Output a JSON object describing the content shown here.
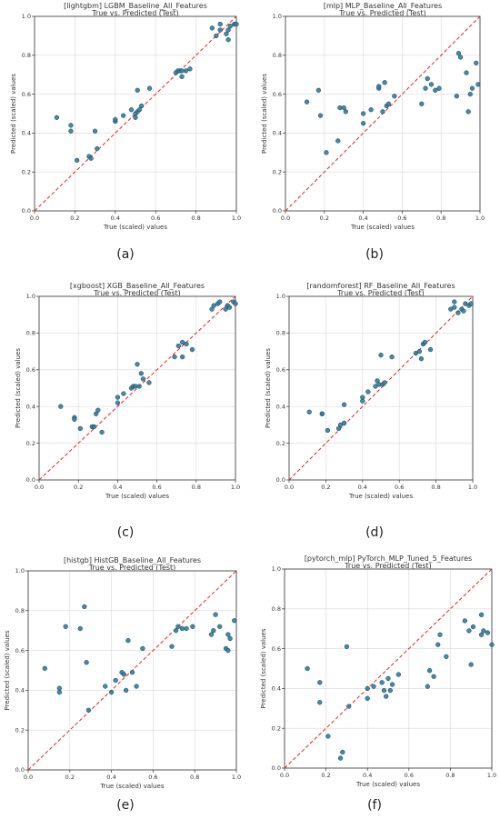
{
  "colors": {
    "point_fill": "#2f7ea0",
    "point_stroke": "#1b3a4a",
    "diagonal": "#e0261f",
    "grid": "#d8d8d8",
    "axis": "#333333"
  },
  "chart_data": [
    {
      "type": "scatter",
      "caption": "(a)",
      "title": "[lightgbm] LGBM_Baseline_All_Features",
      "subtitle": "True vs. Predicted (Test)",
      "xlabel": "True (scaled) values",
      "ylabel": "Predicted (scaled) values",
      "xlim": [
        0,
        1
      ],
      "ylim": [
        0,
        1
      ],
      "grid": true,
      "reference_line": "y = x",
      "xticks": [
        "0.0",
        "0.2",
        "0.4",
        "0.6",
        "0.8",
        "1.0"
      ],
      "yticks": [
        "0.0",
        "0.2",
        "0.4",
        "0.6",
        "0.8",
        "1.0"
      ],
      "x": [
        0.11,
        0.18,
        0.18,
        0.21,
        0.27,
        0.28,
        0.3,
        0.31,
        0.4,
        0.4,
        0.44,
        0.48,
        0.5,
        0.5,
        0.51,
        0.51,
        0.52,
        0.53,
        0.57,
        0.7,
        0.71,
        0.72,
        0.73,
        0.73,
        0.75,
        0.77,
        0.88,
        0.9,
        0.92,
        0.92,
        0.95,
        0.96,
        0.96,
        0.97,
        0.99,
        1.0
      ],
      "y": [
        0.48,
        0.44,
        0.41,
        0.26,
        0.28,
        0.27,
        0.41,
        0.32,
        0.46,
        0.47,
        0.49,
        0.52,
        0.48,
        0.5,
        0.62,
        0.51,
        0.52,
        0.54,
        0.63,
        0.71,
        0.72,
        0.72,
        0.69,
        0.72,
        0.72,
        0.73,
        0.94,
        0.9,
        0.93,
        0.96,
        0.91,
        0.88,
        0.93,
        0.95,
        0.96,
        0.96
      ]
    },
    {
      "type": "scatter",
      "caption": "(b)",
      "title": "[mlp] MLP_Baseline_All_Features",
      "subtitle": "True vs. Predicted (Test)",
      "xlabel": "True (scaled) values",
      "ylabel": "Predicted (scaled) values",
      "xlim": [
        0,
        1
      ],
      "ylim": [
        0,
        1
      ],
      "grid": true,
      "reference_line": "y = x",
      "xticks": [
        "0.0",
        "0.2",
        "0.4",
        "0.6",
        "0.8",
        "1.0"
      ],
      "yticks": [
        "0.0",
        "0.2",
        "0.4",
        "0.6",
        "0.8",
        "1.0"
      ],
      "x": [
        0.11,
        0.17,
        0.18,
        0.21,
        0.27,
        0.28,
        0.3,
        0.31,
        0.4,
        0.4,
        0.44,
        0.48,
        0.48,
        0.5,
        0.51,
        0.52,
        0.53,
        0.56,
        0.7,
        0.72,
        0.73,
        0.75,
        0.77,
        0.79,
        0.88,
        0.89,
        0.9,
        0.93,
        0.94,
        0.95,
        0.96,
        0.98,
        0.99
      ],
      "y": [
        0.56,
        0.62,
        0.49,
        0.3,
        0.36,
        0.53,
        0.53,
        0.51,
        0.45,
        0.5,
        0.52,
        0.63,
        0.64,
        0.51,
        0.66,
        0.54,
        0.55,
        0.59,
        0.55,
        0.63,
        0.68,
        0.65,
        0.62,
        0.63,
        0.59,
        0.81,
        0.79,
        0.71,
        0.51,
        0.6,
        0.63,
        0.76,
        0.65
      ]
    },
    {
      "type": "scatter",
      "caption": "(c)",
      "title": "[xgboost] XGB_Baseline_All_Features",
      "subtitle": "True vs. Predicted (Test)",
      "xlabel": "True (scaled) values",
      "ylabel": "Predicted (scaled) values",
      "xlim": [
        0,
        1
      ],
      "ylim": [
        0,
        1
      ],
      "grid": true,
      "reference_line": "y = x",
      "xticks": [
        "0.0",
        "0.2",
        "0.4",
        "0.6",
        "0.8",
        "1.0"
      ],
      "yticks": [
        "0.0",
        "0.2",
        "0.4",
        "0.6",
        "0.8",
        "1.0"
      ],
      "x": [
        0.11,
        0.18,
        0.18,
        0.21,
        0.27,
        0.28,
        0.29,
        0.3,
        0.32,
        0.4,
        0.4,
        0.43,
        0.47,
        0.48,
        0.49,
        0.5,
        0.51,
        0.52,
        0.53,
        0.56,
        0.69,
        0.71,
        0.73,
        0.73,
        0.75,
        0.78,
        0.88,
        0.89,
        0.91,
        0.92,
        0.95,
        0.96,
        0.97,
        0.99,
        1.0
      ],
      "y": [
        0.4,
        0.34,
        0.33,
        0.28,
        0.29,
        0.29,
        0.36,
        0.38,
        0.26,
        0.45,
        0.42,
        0.47,
        0.5,
        0.51,
        0.51,
        0.63,
        0.51,
        0.58,
        0.55,
        0.53,
        0.67,
        0.73,
        0.75,
        0.67,
        0.74,
        0.71,
        0.93,
        0.95,
        0.96,
        0.97,
        0.93,
        0.95,
        0.94,
        0.97,
        0.96
      ]
    },
    {
      "type": "scatter",
      "caption": "(d)",
      "title": "[randomforest] RF_Baseline_All_Features",
      "subtitle": "True vs. Predicted (Test)",
      "xlabel": "True (scaled) values",
      "ylabel": "Predicted (scaled) values",
      "xlim": [
        0,
        1
      ],
      "ylim": [
        0,
        1
      ],
      "grid": true,
      "reference_line": "y = x",
      "xticks": [
        "0.0",
        "0.2",
        "0.4",
        "0.6",
        "0.8",
        "1.0"
      ],
      "yticks": [
        "0.0",
        "0.2",
        "0.4",
        "0.6",
        "0.8",
        "1.0"
      ],
      "x": [
        0.11,
        0.18,
        0.18,
        0.21,
        0.27,
        0.28,
        0.3,
        0.3,
        0.4,
        0.4,
        0.43,
        0.47,
        0.48,
        0.49,
        0.5,
        0.51,
        0.52,
        0.56,
        0.69,
        0.71,
        0.72,
        0.73,
        0.74,
        0.77,
        0.88,
        0.9,
        0.9,
        0.92,
        0.94,
        0.95,
        0.96,
        0.98,
        0.99
      ],
      "y": [
        0.37,
        0.36,
        0.36,
        0.27,
        0.28,
        0.3,
        0.31,
        0.41,
        0.43,
        0.45,
        0.48,
        0.51,
        0.54,
        0.52,
        0.68,
        0.52,
        0.53,
        0.67,
        0.69,
        0.7,
        0.66,
        0.74,
        0.75,
        0.71,
        0.93,
        0.94,
        0.97,
        0.91,
        0.93,
        0.92,
        0.96,
        0.95,
        0.96
      ]
    },
    {
      "type": "scatter",
      "caption": "(e)",
      "title": "[histgb] HistGB_Baseline_All_Features",
      "subtitle": "True vs. Predicted (Test)",
      "xlabel": "True (scaled) values",
      "ylabel": "Predicted (scaled) values",
      "xlim": [
        0,
        1
      ],
      "ylim": [
        0,
        1
      ],
      "grid": true,
      "reference_line": "y = x",
      "xticks": [
        "0.0",
        "0.2",
        "0.4",
        "0.6",
        "0.8",
        "1.0"
      ],
      "yticks": [
        "0.0",
        "0.2",
        "0.4",
        "0.6",
        "0.8",
        "1.0"
      ],
      "x": [
        0.08,
        0.15,
        0.15,
        0.18,
        0.25,
        0.27,
        0.28,
        0.29,
        0.37,
        0.4,
        0.42,
        0.45,
        0.46,
        0.47,
        0.48,
        0.5,
        0.52,
        0.55,
        0.69,
        0.71,
        0.72,
        0.74,
        0.76,
        0.79,
        0.88,
        0.89,
        0.9,
        0.92,
        0.95,
        0.96,
        0.96,
        0.97,
        0.99
      ],
      "y": [
        0.51,
        0.41,
        0.39,
        0.72,
        0.71,
        0.82,
        0.54,
        0.3,
        0.42,
        0.39,
        0.45,
        0.49,
        0.48,
        0.4,
        0.65,
        0.49,
        0.42,
        0.61,
        0.62,
        0.7,
        0.72,
        0.71,
        0.71,
        0.72,
        0.68,
        0.7,
        0.78,
        0.72,
        0.61,
        0.68,
        0.6,
        0.66,
        0.75
      ]
    },
    {
      "type": "scatter",
      "caption": "(f)",
      "title": "[pytorch_mlp] PyTorch_MLP_Tuned_5_Features",
      "subtitle": "True vs. Predicted (Test)",
      "xlabel": "True (scaled) values",
      "ylabel": "Predicted (scaled) values",
      "xlim": [
        0,
        1
      ],
      "ylim": [
        0,
        1
      ],
      "grid": true,
      "reference_line": "y = x",
      "xticks": [
        "0.0",
        "0.2",
        "0.4",
        "0.6",
        "0.8",
        "1.0"
      ],
      "yticks": [
        "0.0",
        "0.2",
        "0.4",
        "0.6",
        "0.8",
        "1.0"
      ],
      "x": [
        0.11,
        0.17,
        0.17,
        0.21,
        0.27,
        0.28,
        0.3,
        0.31,
        0.4,
        0.4,
        0.43,
        0.47,
        0.48,
        0.49,
        0.5,
        0.51,
        0.52,
        0.55,
        0.69,
        0.7,
        0.72,
        0.74,
        0.75,
        0.78,
        0.87,
        0.89,
        0.9,
        0.91,
        0.95,
        0.95,
        0.96,
        0.98,
        1.0
      ],
      "y": [
        0.5,
        0.43,
        0.33,
        0.16,
        0.05,
        0.08,
        0.61,
        0.31,
        0.4,
        0.35,
        0.41,
        0.43,
        0.39,
        0.36,
        0.45,
        0.39,
        0.42,
        0.47,
        0.41,
        0.49,
        0.46,
        0.62,
        0.67,
        0.56,
        0.74,
        0.69,
        0.52,
        0.71,
        0.77,
        0.67,
        0.69,
        0.68,
        0.62
      ]
    }
  ]
}
